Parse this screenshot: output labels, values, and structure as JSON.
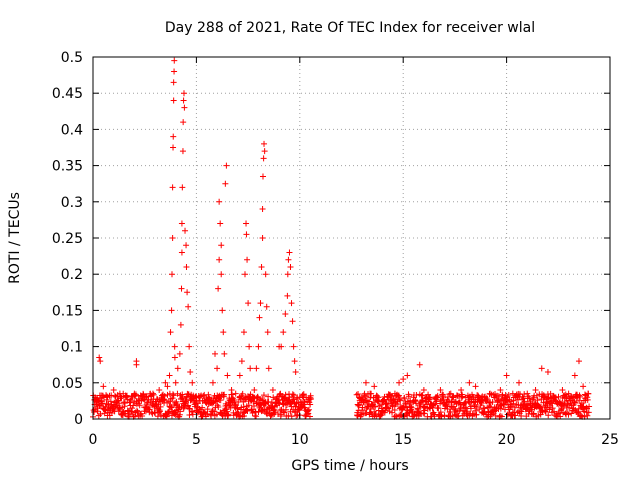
{
  "chart_data": {
    "type": "scatter",
    "title": "Day 288 of 2021, Rate Of TEC Index for receiver wlal",
    "xlabel": "GPS time / hours",
    "ylabel": "ROTI / TECUs",
    "xlim": [
      0,
      25
    ],
    "ylim": [
      0,
      0.5
    ],
    "xticks": [
      0,
      5,
      10,
      15,
      20,
      25
    ],
    "yticks": [
      0,
      0.05,
      0.1,
      0.15,
      0.2,
      0.25,
      0.3,
      0.35,
      0.4,
      0.45,
      0.5
    ],
    "grid": true,
    "marker": "+",
    "color": "#ff0000",
    "series": [
      {
        "points": [
          [
            0.1,
            0.03
          ],
          [
            0.2,
            0.02
          ],
          [
            0.3,
            0.085
          ],
          [
            0.35,
            0.08
          ],
          [
            0.5,
            0.045
          ],
          [
            0.7,
            0.03
          ],
          [
            1.0,
            0.04
          ],
          [
            1.3,
            0.035
          ],
          [
            1.6,
            0.03
          ],
          [
            2.0,
            0.035
          ],
          [
            2.1,
            0.08
          ],
          [
            2.1,
            0.075
          ],
          [
            2.5,
            0.03
          ],
          [
            2.9,
            0.035
          ],
          [
            3.2,
            0.04
          ],
          [
            3.5,
            0.05
          ],
          [
            3.6,
            0.045
          ],
          [
            3.7,
            0.06
          ],
          [
            3.75,
            0.12
          ],
          [
            3.8,
            0.15
          ],
          [
            3.82,
            0.2
          ],
          [
            3.85,
            0.25
          ],
          [
            3.85,
            0.32
          ],
          [
            3.87,
            0.375
          ],
          [
            3.88,
            0.39
          ],
          [
            3.9,
            0.44
          ],
          [
            3.9,
            0.465
          ],
          [
            3.92,
            0.48
          ],
          [
            3.93,
            0.495
          ],
          [
            3.95,
            0.1
          ],
          [
            3.96,
            0.085
          ],
          [
            4.0,
            0.05
          ],
          [
            4.1,
            0.07
          ],
          [
            4.2,
            0.09
          ],
          [
            4.25,
            0.13
          ],
          [
            4.28,
            0.18
          ],
          [
            4.3,
            0.23
          ],
          [
            4.3,
            0.27
          ],
          [
            4.32,
            0.32
          ],
          [
            4.35,
            0.37
          ],
          [
            4.36,
            0.41
          ],
          [
            4.38,
            0.44
          ],
          [
            4.4,
            0.45
          ],
          [
            4.42,
            0.43
          ],
          [
            4.45,
            0.26
          ],
          [
            4.5,
            0.24
          ],
          [
            4.52,
            0.21
          ],
          [
            4.55,
            0.175
          ],
          [
            4.6,
            0.155
          ],
          [
            4.65,
            0.1
          ],
          [
            4.7,
            0.065
          ],
          [
            4.8,
            0.05
          ],
          [
            5.0,
            0.03
          ],
          [
            5.3,
            0.025
          ],
          [
            5.6,
            0.03
          ],
          [
            5.8,
            0.05
          ],
          [
            5.9,
            0.09
          ],
          [
            6.0,
            0.07
          ],
          [
            6.05,
            0.18
          ],
          [
            6.1,
            0.22
          ],
          [
            6.1,
            0.3
          ],
          [
            6.15,
            0.27
          ],
          [
            6.2,
            0.24
          ],
          [
            6.2,
            0.2
          ],
          [
            6.25,
            0.15
          ],
          [
            6.3,
            0.12
          ],
          [
            6.35,
            0.09
          ],
          [
            6.4,
            0.325
          ],
          [
            6.45,
            0.35
          ],
          [
            6.5,
            0.06
          ],
          [
            6.7,
            0.04
          ],
          [
            6.9,
            0.035
          ],
          [
            7.1,
            0.06
          ],
          [
            7.2,
            0.08
          ],
          [
            7.3,
            0.12
          ],
          [
            7.35,
            0.2
          ],
          [
            7.4,
            0.27
          ],
          [
            7.42,
            0.255
          ],
          [
            7.45,
            0.22
          ],
          [
            7.5,
            0.16
          ],
          [
            7.55,
            0.1
          ],
          [
            7.6,
            0.07
          ],
          [
            7.8,
            0.04
          ],
          [
            7.9,
            0.07
          ],
          [
            8.0,
            0.1
          ],
          [
            8.05,
            0.14
          ],
          [
            8.1,
            0.16
          ],
          [
            8.15,
            0.21
          ],
          [
            8.2,
            0.25
          ],
          [
            8.2,
            0.29
          ],
          [
            8.22,
            0.335
          ],
          [
            8.25,
            0.36
          ],
          [
            8.27,
            0.38
          ],
          [
            8.3,
            0.37
          ],
          [
            8.35,
            0.2
          ],
          [
            8.4,
            0.155
          ],
          [
            8.45,
            0.12
          ],
          [
            8.5,
            0.07
          ],
          [
            8.7,
            0.04
          ],
          [
            9.0,
            0.1
          ],
          [
            9.1,
            0.1
          ],
          [
            9.2,
            0.12
          ],
          [
            9.3,
            0.145
          ],
          [
            9.4,
            0.17
          ],
          [
            9.42,
            0.2
          ],
          [
            9.45,
            0.22
          ],
          [
            9.5,
            0.23
          ],
          [
            9.55,
            0.21
          ],
          [
            9.6,
            0.16
          ],
          [
            9.65,
            0.135
          ],
          [
            9.7,
            0.1
          ],
          [
            9.75,
            0.08
          ],
          [
            9.8,
            0.065
          ],
          [
            10.0,
            0.03
          ],
          [
            10.2,
            0.02
          ],
          [
            10.5,
            0.02
          ],
          [
            12.8,
            0.02
          ],
          [
            13.0,
            0.03
          ],
          [
            13.2,
            0.05
          ],
          [
            13.4,
            0.035
          ],
          [
            13.6,
            0.045
          ],
          [
            14.0,
            0.025
          ],
          [
            14.3,
            0.03
          ],
          [
            14.6,
            0.035
          ],
          [
            14.8,
            0.05
          ],
          [
            15.0,
            0.055
          ],
          [
            15.2,
            0.06
          ],
          [
            15.5,
            0.03
          ],
          [
            15.8,
            0.075
          ],
          [
            16.0,
            0.04
          ],
          [
            16.3,
            0.03
          ],
          [
            16.8,
            0.04
          ],
          [
            17.3,
            0.035
          ],
          [
            17.8,
            0.04
          ],
          [
            18.2,
            0.05
          ],
          [
            18.5,
            0.045
          ],
          [
            18.8,
            0.03
          ],
          [
            19.2,
            0.035
          ],
          [
            19.7,
            0.04
          ],
          [
            20.0,
            0.06
          ],
          [
            20.3,
            0.035
          ],
          [
            20.6,
            0.05
          ],
          [
            21.0,
            0.035
          ],
          [
            21.4,
            0.04
          ],
          [
            21.7,
            0.07
          ],
          [
            22.0,
            0.065
          ],
          [
            22.3,
            0.03
          ],
          [
            22.7,
            0.04
          ],
          [
            23.0,
            0.035
          ],
          [
            23.3,
            0.06
          ],
          [
            23.5,
            0.08
          ],
          [
            23.7,
            0.045
          ],
          [
            23.9,
            0.03
          ]
        ]
      }
    ],
    "baseline_band": {
      "segments": [
        [
          0.0,
          10.55
        ],
        [
          12.75,
          24.0
        ]
      ],
      "ymin": 0.003,
      "ymax": 0.035,
      "step_hours": 0.0166
    }
  }
}
